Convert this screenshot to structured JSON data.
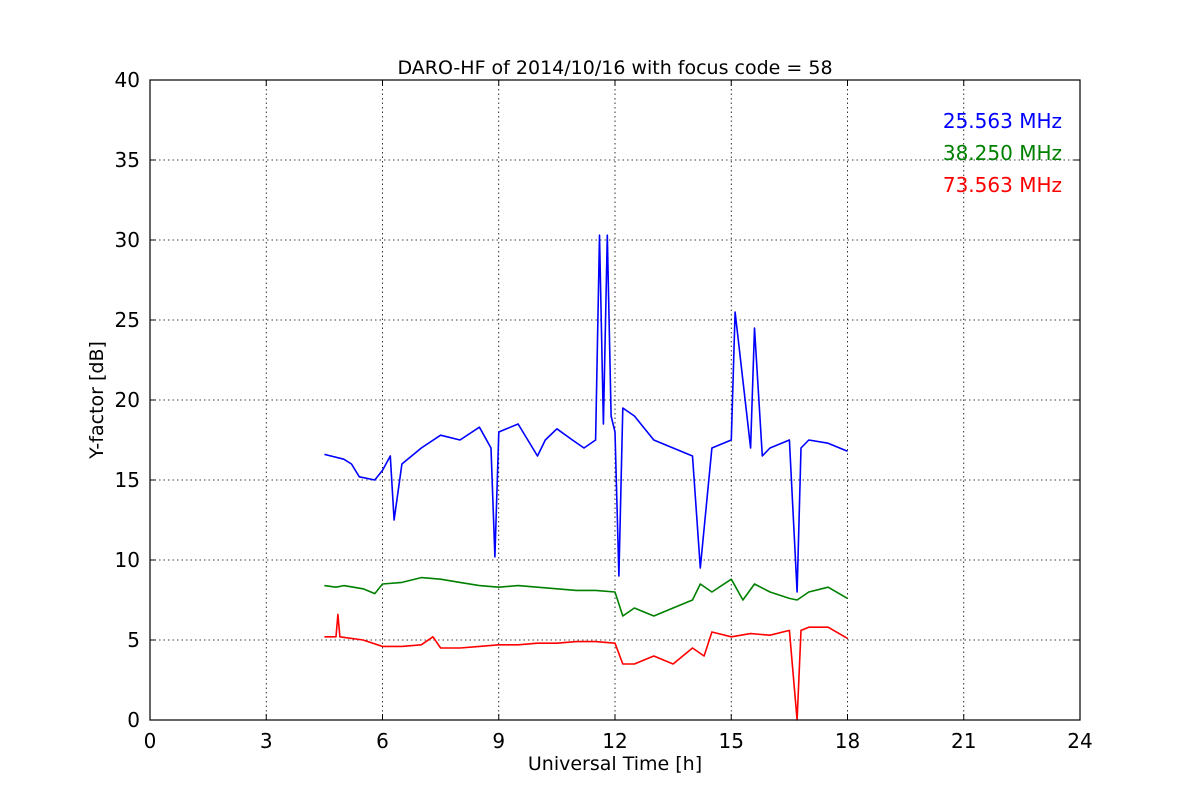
{
  "chart_data": {
    "type": "line",
    "title": "DARO-HF of 2014/10/16 with focus code = 58",
    "xlabel": "Universal Time [h]",
    "ylabel": "Y-factor [dB]",
    "xlim": [
      0,
      24
    ],
    "ylim": [
      0,
      40
    ],
    "xticks": [
      "0",
      "3",
      "6",
      "9",
      "12",
      "15",
      "18",
      "21",
      "24"
    ],
    "yticks": [
      "0",
      "5",
      "10",
      "15",
      "20",
      "25",
      "30",
      "35",
      "40"
    ],
    "grid": true,
    "legend_position": "top-right",
    "series": [
      {
        "name": "25.563 MHz",
        "color": "#0000ff",
        "x": [
          4.5,
          5.0,
          5.2,
          5.4,
          5.8,
          6.0,
          6.2,
          6.3,
          6.5,
          7.0,
          7.5,
          8.0,
          8.5,
          8.8,
          8.9,
          9.0,
          9.5,
          10.0,
          10.2,
          10.5,
          10.9,
          11.2,
          11.5,
          11.6,
          11.7,
          11.8,
          11.9,
          12.0,
          12.1,
          12.2,
          12.5,
          13.0,
          13.5,
          14.0,
          14.2,
          14.5,
          15.0,
          15.1,
          15.5,
          15.6,
          15.8,
          16.0,
          16.5,
          16.7,
          16.8,
          17.0,
          17.5,
          18.0
        ],
        "y": [
          16.6,
          16.3,
          16.0,
          15.2,
          15.0,
          15.6,
          16.5,
          12.5,
          16.0,
          17.0,
          17.8,
          17.5,
          18.3,
          17.0,
          10.2,
          18.0,
          18.5,
          16.5,
          17.5,
          18.2,
          17.5,
          17.0,
          17.5,
          30.3,
          18.5,
          30.3,
          19.0,
          18.0,
          9.0,
          19.5,
          19.0,
          17.5,
          17.0,
          16.5,
          9.5,
          17.0,
          17.5,
          25.5,
          17.0,
          24.5,
          16.5,
          17.0,
          17.5,
          8.0,
          17.0,
          17.5,
          17.3,
          16.8
        ]
      },
      {
        "name": "38.250 MHz",
        "color": "#008000",
        "x": [
          4.5,
          4.8,
          5.0,
          5.5,
          5.8,
          6.0,
          6.5,
          7.0,
          7.5,
          8.0,
          8.5,
          9.0,
          9.5,
          10.0,
          10.5,
          11.0,
          11.5,
          12.0,
          12.2,
          12.5,
          13.0,
          13.5,
          14.0,
          14.2,
          14.5,
          15.0,
          15.3,
          15.6,
          16.0,
          16.5,
          16.7,
          17.0,
          17.5,
          18.0
        ],
        "y": [
          8.4,
          8.3,
          8.4,
          8.2,
          7.9,
          8.5,
          8.6,
          8.9,
          8.8,
          8.6,
          8.4,
          8.3,
          8.4,
          8.3,
          8.2,
          8.1,
          8.1,
          8.0,
          6.5,
          7.0,
          6.5,
          7.0,
          7.5,
          8.5,
          8.0,
          8.8,
          7.5,
          8.5,
          8.0,
          7.6,
          7.5,
          8.0,
          8.3,
          7.6
        ]
      },
      {
        "name": "73.563 MHz",
        "color": "#ff0000",
        "x": [
          4.5,
          4.8,
          4.85,
          4.9,
          5.5,
          6.0,
          6.5,
          7.0,
          7.3,
          7.5,
          8.0,
          8.5,
          9.0,
          9.5,
          10.0,
          10.5,
          11.0,
          11.5,
          12.0,
          12.2,
          12.5,
          13.0,
          13.5,
          14.0,
          14.3,
          14.5,
          15.0,
          15.5,
          16.0,
          16.5,
          16.7,
          16.8,
          17.0,
          17.5,
          18.0
        ],
        "y": [
          5.2,
          5.2,
          6.6,
          5.2,
          5.0,
          4.6,
          4.6,
          4.7,
          5.2,
          4.5,
          4.5,
          4.6,
          4.7,
          4.7,
          4.8,
          4.8,
          4.9,
          4.9,
          4.8,
          3.5,
          3.5,
          4.0,
          3.5,
          4.5,
          4.0,
          5.5,
          5.2,
          5.4,
          5.3,
          5.6,
          0.0,
          5.6,
          5.8,
          5.8,
          5.1
        ]
      }
    ]
  }
}
